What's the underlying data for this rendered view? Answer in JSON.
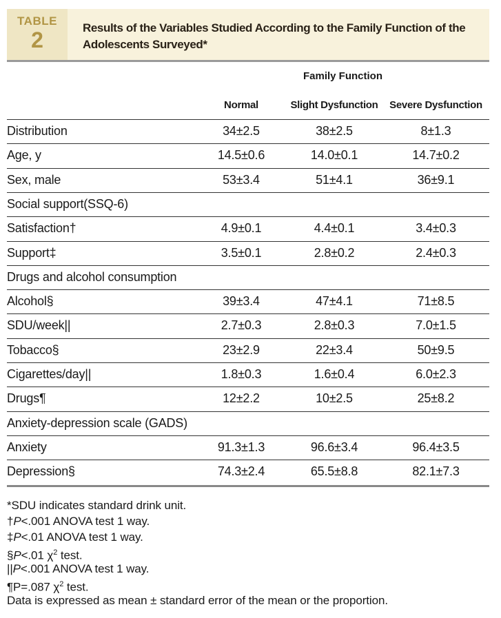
{
  "header": {
    "table_label": "TABLE",
    "table_number": "2",
    "title": "Results of the Variables Studied According to the Family Function of the Adolescents Surveyed*"
  },
  "table": {
    "group_header": "Family Function",
    "columns": [
      "Normal",
      "Slight Dysfunction",
      "Severe Dysfunction"
    ],
    "rows": [
      {
        "label": "Distribution",
        "values": [
          "34±2.5",
          "38±2.5",
          "8±1.3"
        ]
      },
      {
        "label": "Age, y",
        "values": [
          "14.5±0.6",
          "14.0±0.1",
          "14.7±0.2"
        ]
      },
      {
        "label": "Sex, male",
        "values": [
          "53±3.4",
          "51±4.1",
          "36±9.1"
        ]
      },
      {
        "label": "Social support(SSQ-6)"
      },
      {
        "label": "Satisfaction†",
        "values": [
          "4.9±0.1",
          "4.4±0.1",
          "3.4±0.3"
        ]
      },
      {
        "label": "Support‡",
        "values": [
          "3.5±0.1",
          "2.8±0.2",
          "2.4±0.3"
        ]
      },
      {
        "label": "Drugs and alcohol consumption"
      },
      {
        "label": "Alcohol§",
        "values": [
          "39±3.4",
          "47±4.1",
          "71±8.5"
        ]
      },
      {
        "label": "SDU/week||",
        "values": [
          "2.7±0.3",
          "2.8±0.3",
          "7.0±1.5"
        ]
      },
      {
        "label": "Tobacco§",
        "values": [
          "23±2.9",
          "22±3.4",
          "50±9.5"
        ]
      },
      {
        "label": "Cigarettes/day||",
        "values": [
          "1.8±0.3",
          "1.6±0.4",
          "6.0±2.3"
        ]
      },
      {
        "label": "Drugs¶",
        "values": [
          "12±2.2",
          "10±2.5",
          "25±8.2"
        ]
      },
      {
        "label": "Anxiety-depression scale (GADS)"
      },
      {
        "label": "Anxiety",
        "values": [
          "91.3±1.3",
          "96.6±3.4",
          "96.4±3.5"
        ]
      },
      {
        "label": "Depression§",
        "values": [
          "74.3±2.4",
          "65.5±8.8",
          "82.1±7.3"
        ]
      }
    ]
  },
  "footnotes": [
    {
      "parts": [
        {
          "text": "*SDU indicates standard drink unit."
        }
      ]
    },
    {
      "parts": [
        {
          "text": "†"
        },
        {
          "text": "P",
          "style": "italic"
        },
        {
          "text": "<.001 ANOVA test 1 way."
        }
      ]
    },
    {
      "parts": [
        {
          "text": "‡"
        },
        {
          "text": "P",
          "style": "italic"
        },
        {
          "text": "<.01 ANOVA test 1 way."
        }
      ]
    },
    {
      "parts": [
        {
          "text": "§"
        },
        {
          "text": "P",
          "style": "italic"
        },
        {
          "text": "<.01 χ"
        },
        {
          "text": "2",
          "style": "sup"
        },
        {
          "text": " test."
        }
      ]
    },
    {
      "parts": [
        {
          "text": "||"
        },
        {
          "text": "P",
          "style": "italic"
        },
        {
          "text": "<.001 ANOVA test 1 way."
        }
      ]
    },
    {
      "parts": [
        {
          "text": "¶P=.087 χ"
        },
        {
          "text": "2",
          "style": "sup"
        },
        {
          "text": " test."
        }
      ]
    },
    {
      "parts": [
        {
          "text": "Data is expressed as mean ± standard error of the mean or the proportion."
        }
      ]
    }
  ]
}
